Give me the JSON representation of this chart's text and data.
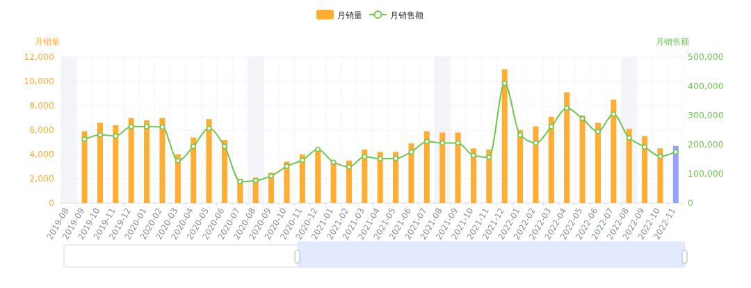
{
  "chart_data": {
    "type": "bar",
    "ylabel": "月销量",
    "y2label": "月销售额",
    "categories": [
      "2019-08",
      "2019-09",
      "2019-10",
      "2019-11",
      "2019-12",
      "2020-01",
      "2020-02",
      "2020-03",
      "2020-04",
      "2020-05",
      "2020-06",
      "2020-07",
      "2020-08",
      "2020-09",
      "2020-10",
      "2020-11",
      "2020-12",
      "2021-01",
      "2021-02",
      "2021-03",
      "2021-04",
      "2021-05",
      "2021-06",
      "2021-07",
      "2021-08",
      "2021-09",
      "2021-10",
      "2021-11",
      "2021-12",
      "2022-01",
      "2022-02",
      "2022-03",
      "2022-04",
      "2022-05",
      "2022-06",
      "2022-07",
      "2022-08",
      "2022-09",
      "2022-10",
      "2022-11"
    ],
    "series": [
      {
        "name": "月销量",
        "color": "#ffad33",
        "colors": [
          null,
          "#ffad33",
          "#ffad33",
          "#ffad33",
          "#ffad33",
          "#ffad33",
          "#ffad33",
          "#ffad33",
          "#ffad33",
          "#ffad33",
          "#ffad33",
          "#ffad33",
          "#ffad33",
          "#ffad33",
          "#ffad33",
          "#ffad33",
          "#ffad33",
          "#ffad33",
          "#ffad33",
          "#ffad33",
          "#ffad33",
          "#ffad33",
          "#ffad33",
          "#ffad33",
          "#ffad33",
          "#ffad33",
          "#ffad33",
          "#ffad33",
          "#ffad33",
          "#ffad33",
          "#ffad33",
          "#ffad33",
          "#ffad33",
          "#ffad33",
          "#ffad33",
          "#ffad33",
          "#ffad33",
          "#ffad33",
          "#ffad33",
          "#99a0f8"
        ],
        "values": [
          null,
          5900,
          6600,
          6400,
          7000,
          6800,
          7000,
          4000,
          5400,
          6900,
          5200,
          2000,
          2100,
          2500,
          3400,
          4000,
          4400,
          3400,
          3500,
          4400,
          4200,
          4200,
          4900,
          5900,
          5800,
          5800,
          4500,
          4400,
          11000,
          6000,
          6300,
          7100,
          9100,
          7200,
          6600,
          8500,
          6100,
          5500,
          4500,
          4700
        ]
      },
      {
        "name": "月销售额",
        "type": "line",
        "axis": "y2",
        "color": "#6cc94e",
        "marker": "circle",
        "values": [
          null,
          219000,
          234000,
          230000,
          262000,
          262000,
          261000,
          145000,
          194000,
          256000,
          194000,
          74000,
          77000,
          93000,
          126000,
          147000,
          184000,
          140000,
          124000,
          159000,
          152000,
          153000,
          175000,
          211000,
          206000,
          206000,
          163000,
          157000,
          410000,
          233000,
          206000,
          262000,
          325000,
          289000,
          245000,
          305000,
          223000,
          192000,
          160000,
          175000
        ]
      }
    ],
    "ylim": [
      0,
      12000
    ],
    "yticks": [
      0,
      {
        "value": 2000,
        "label": "2,000"
      },
      {
        "value": 4000,
        "label": "4,000"
      },
      {
        "value": 6000,
        "label": "6,000"
      },
      {
        "value": 8000,
        "label": "8,000"
      },
      {
        "value": 10000,
        "label": "10,000"
      },
      {
        "value": 12000,
        "label": "12,000"
      }
    ],
    "y2lim": [
      0,
      500000
    ],
    "y2ticks": [
      0,
      {
        "value": 100000,
        "label": "100,000"
      },
      {
        "value": 200000,
        "label": "200,000"
      },
      {
        "value": 300000,
        "label": "300,000"
      },
      {
        "value": 400000,
        "label": "400,000"
      },
      {
        "value": 500000,
        "label": "500,000"
      }
    ],
    "bands": [
      {
        "axis": "x",
        "from": "2019-08",
        "to": "2019-08",
        "color": "#f3f5f9"
      },
      {
        "axis": "x",
        "from": "2020-08",
        "to": "2020-08",
        "color": "#f3f5f9"
      },
      {
        "axis": "x",
        "from": "2021-08",
        "to": "2021-08",
        "color": "#f3f5f9"
      },
      {
        "axis": "x",
        "from": "2022-08",
        "to": "2022-08",
        "color": "#f3f5f9"
      }
    ],
    "grid": true,
    "legend": "top"
  }
}
